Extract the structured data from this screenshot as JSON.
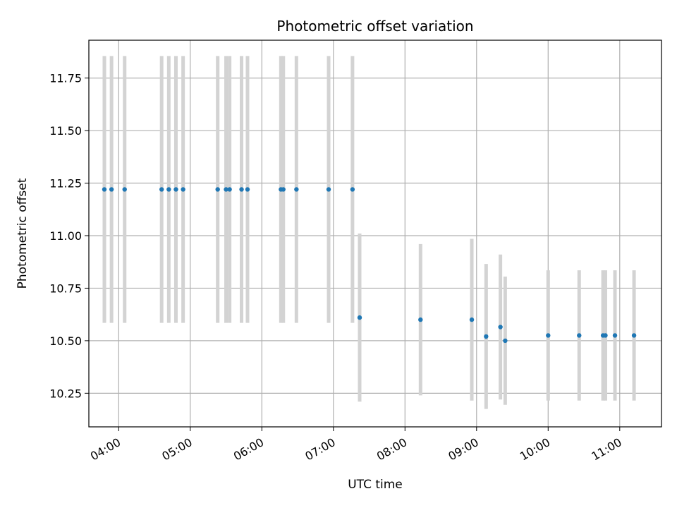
{
  "chart_data": {
    "type": "scatter",
    "title": "Photometric offset variation",
    "xlabel": "UTC time",
    "ylabel": "Photometric offset",
    "grid": true,
    "xlim": [
      "03:35",
      "11:35"
    ],
    "ylim": [
      10.09,
      11.93
    ],
    "xticks": [
      "04:00",
      "05:00",
      "06:00",
      "07:00",
      "08:00",
      "09:00",
      "10:00",
      "11:00"
    ],
    "yticks": [
      "10.25",
      "10.50",
      "10.75",
      "11.00",
      "11.25",
      "11.50",
      "11.75"
    ],
    "errorbar_color": "#d3d3d3",
    "point_color": "#1f77b4",
    "series": [
      {
        "points": [
          {
            "x": "03:48",
            "y": 11.22,
            "err": 0.635
          },
          {
            "x": "03:54",
            "y": 11.22,
            "err": 0.635
          },
          {
            "x": "04:05",
            "y": 11.22,
            "err": 0.635
          },
          {
            "x": "04:36",
            "y": 11.22,
            "err": 0.635
          },
          {
            "x": "04:42",
            "y": 11.22,
            "err": 0.635
          },
          {
            "x": "04:48",
            "y": 11.22,
            "err": 0.635
          },
          {
            "x": "04:54",
            "y": 11.22,
            "err": 0.635
          },
          {
            "x": "05:23",
            "y": 11.22,
            "err": 0.635
          },
          {
            "x": "05:30",
            "y": 11.22,
            "err": 0.635
          },
          {
            "x": "05:33",
            "y": 11.22,
            "err": 0.635
          },
          {
            "x": "05:43",
            "y": 11.22,
            "err": 0.635
          },
          {
            "x": "05:48",
            "y": 11.22,
            "err": 0.635
          },
          {
            "x": "06:16",
            "y": 11.22,
            "err": 0.635
          },
          {
            "x": "06:18",
            "y": 11.22,
            "err": 0.635
          },
          {
            "x": "06:29",
            "y": 11.22,
            "err": 0.635
          },
          {
            "x": "06:56",
            "y": 11.22,
            "err": 0.635
          },
          {
            "x": "07:16",
            "y": 11.22,
            "err": 0.635
          },
          {
            "x": "07:22",
            "y": 10.61,
            "err": 0.4
          },
          {
            "x": "08:13",
            "y": 10.6,
            "err": 0.36
          },
          {
            "x": "08:56",
            "y": 10.6,
            "err": 0.385
          },
          {
            "x": "09:08",
            "y": 10.52,
            "err": 0.345
          },
          {
            "x": "09:20",
            "y": 10.565,
            "err": 0.345
          },
          {
            "x": "09:24",
            "y": 10.5,
            "err": 0.305
          },
          {
            "x": "10:00",
            "y": 10.525,
            "err": 0.31
          },
          {
            "x": "10:26",
            "y": 10.525,
            "err": 0.31
          },
          {
            "x": "10:46",
            "y": 10.525,
            "err": 0.31
          },
          {
            "x": "10:48",
            "y": 10.525,
            "err": 0.31
          },
          {
            "x": "10:56",
            "y": 10.525,
            "err": 0.31
          },
          {
            "x": "11:12",
            "y": 10.525,
            "err": 0.31
          }
        ]
      }
    ]
  }
}
